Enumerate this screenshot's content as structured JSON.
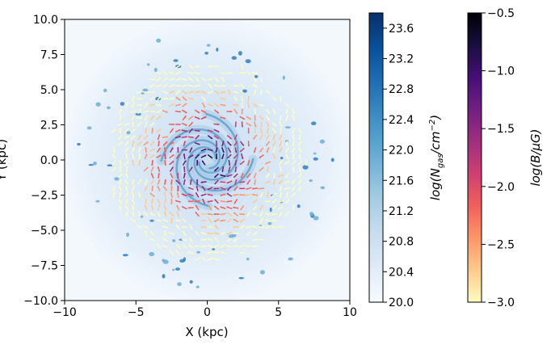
{
  "chart_data": {
    "type": "heatmap",
    "xlabel": "X (kpc)",
    "ylabel": "Y (kpc)",
    "xlim": [
      -10,
      10
    ],
    "ylim": [
      -10,
      10
    ],
    "xticks": [
      -10,
      -5,
      0,
      5,
      10
    ],
    "yticks": [
      -10.0,
      -7.5,
      -5.0,
      -2.5,
      0.0,
      2.5,
      5.0,
      7.5,
      10.0
    ],
    "x_tick_labels": [
      "−10",
      "−5",
      "0",
      "5",
      "10"
    ],
    "y_tick_labels": [
      "−10.0",
      "−7.5",
      "−5.0",
      "−2.5",
      "0.0",
      "2.5",
      "5.0",
      "7.5",
      "10.0"
    ],
    "background_field": {
      "quantity": "gas column density map (spiral galaxy)",
      "colormap": "Blues",
      "range": [
        20.0,
        23.8
      ]
    },
    "vector_field": {
      "quantity": "magnetic field vectors",
      "colormap": "magma_r",
      "range": [
        -3.0,
        -0.5
      ],
      "extent_radius": 7
    },
    "colorbars": [
      {
        "label": "log(N_gas/cm^-2)",
        "label_main": "log(N",
        "label_sub": "gas",
        "label_mid": "/cm",
        "label_sup": "−2",
        "label_end": ")",
        "min": 20.0,
        "max": 23.8,
        "colors": [
          "#f7fbff",
          "#deebf7",
          "#c6dbef",
          "#9ecae1",
          "#6baed6",
          "#4292c6",
          "#2171b5",
          "#08519c",
          "#08306b"
        ],
        "ticks": [
          20.0,
          20.4,
          20.8,
          21.2,
          21.6,
          22.0,
          22.4,
          22.8,
          23.2,
          23.6
        ],
        "tick_labels": [
          "20.0",
          "20.4",
          "20.8",
          "21.2",
          "21.6",
          "22.0",
          "22.4",
          "22.8",
          "23.2",
          "23.6"
        ]
      },
      {
        "label": "log(B/μG)",
        "min": -3.0,
        "max": -0.5,
        "colors": [
          "#fcfdbf",
          "#feca8d",
          "#fd9668",
          "#f1605d",
          "#cd4071",
          "#9e2f7f",
          "#721f81",
          "#440f76",
          "#180f3d",
          "#000004"
        ],
        "ticks": [
          -3.0,
          -2.5,
          -2.0,
          -1.5,
          -1.0,
          -0.5
        ],
        "tick_labels": [
          "−3.0",
          "−2.5",
          "−2.0",
          "−1.5",
          "−1.0",
          "−0.5"
        ]
      }
    ]
  }
}
